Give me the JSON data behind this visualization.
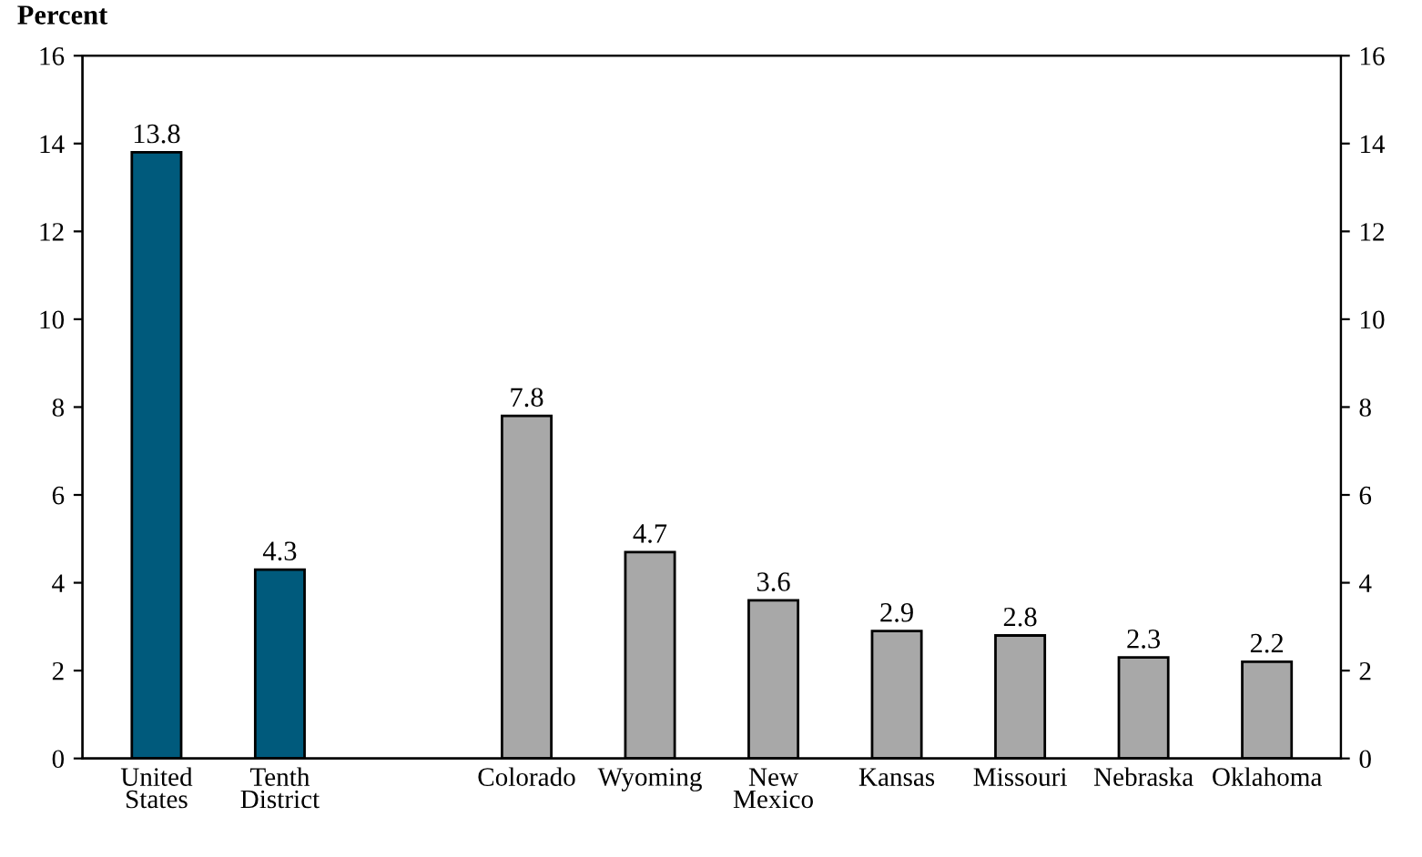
{
  "chart_data": {
    "type": "bar",
    "ylabel": "Percent",
    "categories": [
      "United States",
      "Tenth District",
      null,
      "Colorado",
      "Wyoming",
      "New Mexico",
      "Kansas",
      "Missouri",
      "Nebraska",
      "Oklahoma"
    ],
    "values": [
      13.8,
      4.3,
      null,
      7.8,
      4.7,
      3.6,
      2.9,
      2.8,
      2.3,
      2.2
    ],
    "colors": [
      "#005a7c",
      "#005a7c",
      null,
      "#a8a8a8",
      "#a8a8a8",
      "#a8a8a8",
      "#a8a8a8",
      "#a8a8a8",
      "#a8a8a8",
      "#a8a8a8"
    ],
    "ylim": [
      0,
      16
    ],
    "yticks": [
      0,
      2,
      4,
      6,
      8,
      10,
      12,
      14,
      16
    ],
    "y2lim": [
      0,
      16
    ],
    "y2ticks": [
      0,
      2,
      4,
      6,
      8,
      10,
      12,
      14,
      16
    ],
    "data_labels": true,
    "grid": false,
    "legend": false
  }
}
